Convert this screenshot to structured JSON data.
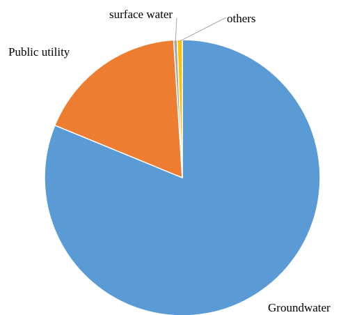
{
  "chart_data": {
    "type": "pie",
    "title": "",
    "start_angle_deg": 90,
    "direction": "clockwise",
    "slices": [
      {
        "label": "Groundwater",
        "value": 81.2,
        "color": "#5B9BD5"
      },
      {
        "label": "Public utility",
        "value": 17.8,
        "color": "#ED7D31"
      },
      {
        "label": "surface water",
        "value": 0.4,
        "color": "#A5A5A5"
      },
      {
        "label": "others",
        "value": 0.6,
        "color": "#FFC000"
      }
    ],
    "legend": "none",
    "label_style": "outside category names with leader lines for small slices"
  }
}
